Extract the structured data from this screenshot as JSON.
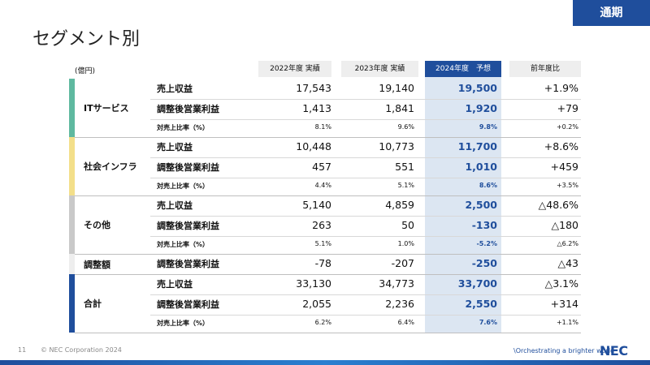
{
  "badge": "通期",
  "title": "セグメント別",
  "unit": "(億円)",
  "table": {
    "columns": [
      "2022年度 実績",
      "2023年度 実績",
      "2024年度　予想",
      "前年度比"
    ],
    "groups": [
      {
        "name": "ITサービス",
        "rows": [
          [
            "売上収益",
            "17,543",
            "19,140",
            "19,500",
            "+1.9%"
          ],
          [
            "調整後営業利益",
            "1,413",
            "1,841",
            "1,920",
            "+79"
          ],
          [
            "対売上比率（%）",
            "8.1%",
            "9.6%",
            "9.8%",
            "+0.2%"
          ]
        ]
      },
      {
        "name": "社会インフラ",
        "rows": [
          [
            "売上収益",
            "10,448",
            "10,773",
            "11,700",
            "+8.6%"
          ],
          [
            "調整後営業利益",
            "457",
            "551",
            "1,010",
            "+459"
          ],
          [
            "対売上比率（%）",
            "4.4%",
            "5.1%",
            "8.6%",
            "+3.5%"
          ]
        ]
      },
      {
        "name": "その他",
        "rows": [
          [
            "売上収益",
            "5,140",
            "4,859",
            "2,500",
            "△48.6%"
          ],
          [
            "調整後営業利益",
            "263",
            "50",
            "-130",
            "△180"
          ],
          [
            "対売上比率（%）",
            "5.1%",
            "1.0%",
            "-5.2%",
            "△6.2%"
          ]
        ]
      },
      {
        "name": "調整額",
        "rows": [
          [
            "調整後営業利益",
            "-78",
            "-207",
            "-250",
            "△43"
          ]
        ]
      },
      {
        "name": "合計",
        "rows": [
          [
            "売上収益",
            "33,130",
            "34,773",
            "33,700",
            "△3.1%"
          ],
          [
            "調整後営業利益",
            "2,055",
            "2,236",
            "2,550",
            "+314"
          ],
          [
            "対売上比率（%）",
            "6.2%",
            "6.4%",
            "7.6%",
            "+1.1%"
          ]
        ]
      }
    ]
  },
  "footer": {
    "page": "11",
    "copyright": "© NEC Corporation 2024",
    "tagline": "\\Orchestrating a brighter world",
    "logo": "NEC"
  }
}
